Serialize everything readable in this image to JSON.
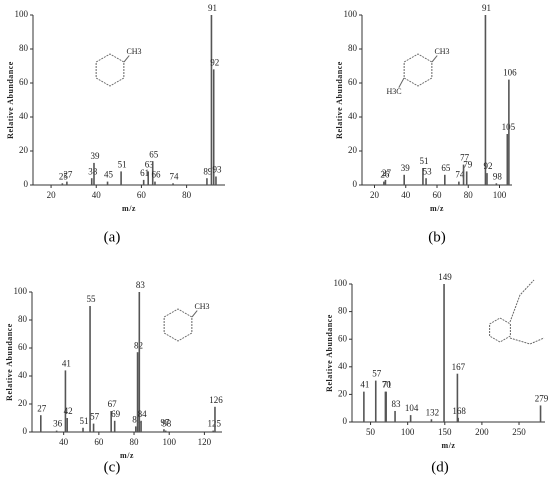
{
  "chart_data": [
    {
      "type": "stem",
      "caption": "(a)",
      "xlabel": "m/z",
      "ylabel": "Relative Abundance",
      "color": "#555555",
      "structure_labels": [
        "CH3"
      ],
      "x": [
        25,
        27,
        38,
        39,
        45,
        51,
        61,
        63,
        65,
        66,
        74,
        89,
        91,
        92,
        93
      ],
      "values": [
        1,
        2,
        4,
        13,
        2,
        8,
        3,
        8,
        14,
        2,
        1,
        4,
        100,
        68,
        5
      ],
      "xlim": [
        12,
        97
      ],
      "xticks": [
        20,
        40,
        60,
        80
      ],
      "ylim": [
        0,
        100
      ],
      "yticks": [
        0,
        20,
        40,
        60,
        80,
        100
      ]
    },
    {
      "type": "stem",
      "caption": "(b)",
      "xlabel": "m/z",
      "ylabel": "Relative Abundance",
      "color": "#555555",
      "structure_labels": [
        "CH3",
        "H3C"
      ],
      "x": [
        26,
        27,
        39,
        51,
        53,
        65,
        74,
        77,
        79,
        91,
        92,
        98,
        105,
        106
      ],
      "values": [
        2,
        3,
        6,
        10,
        4,
        6,
        2,
        12,
        8,
        100,
        7,
        1,
        30,
        62
      ],
      "xlim": [
        12,
        108
      ],
      "xticks": [
        20,
        40,
        60,
        80,
        100
      ],
      "ylim": [
        0,
        100
      ],
      "yticks": [
        0,
        20,
        40,
        60,
        80,
        100
      ]
    },
    {
      "type": "stem",
      "caption": "(c)",
      "xlabel": "m/z",
      "ylabel": "Relative Abundance",
      "color": "#555555",
      "structure_labels": [
        "CH3"
      ],
      "x": [
        27,
        36,
        41,
        42,
        51,
        55,
        57,
        67,
        69,
        81,
        82,
        83,
        84,
        97,
        98,
        125,
        126
      ],
      "values": [
        12,
        1,
        44,
        10,
        3,
        90,
        6,
        15,
        8,
        4,
        57,
        100,
        8,
        2,
        1,
        1,
        18
      ],
      "xlim": [
        22,
        130
      ],
      "xticks": [
        40,
        60,
        80,
        100,
        120
      ],
      "ylim": [
        0,
        100
      ],
      "yticks": [
        0,
        20,
        40,
        60,
        80,
        100
      ]
    },
    {
      "type": "stem",
      "caption": "(d)",
      "xlabel": "m/z",
      "ylabel": "Relative Abundance",
      "color": "#555555",
      "structure_labels": [],
      "x": [
        41,
        57,
        70,
        71,
        83,
        104,
        132,
        149,
        167,
        168,
        279
      ],
      "values": [
        22,
        30,
        22,
        22,
        8,
        5,
        2,
        100,
        35,
        3,
        12
      ],
      "xlim": [
        25,
        285
      ],
      "xticks": [
        50,
        100,
        150,
        200,
        250
      ],
      "ylim": [
        0,
        100
      ],
      "yticks": [
        0,
        20,
        40,
        60,
        80,
        100
      ]
    }
  ]
}
